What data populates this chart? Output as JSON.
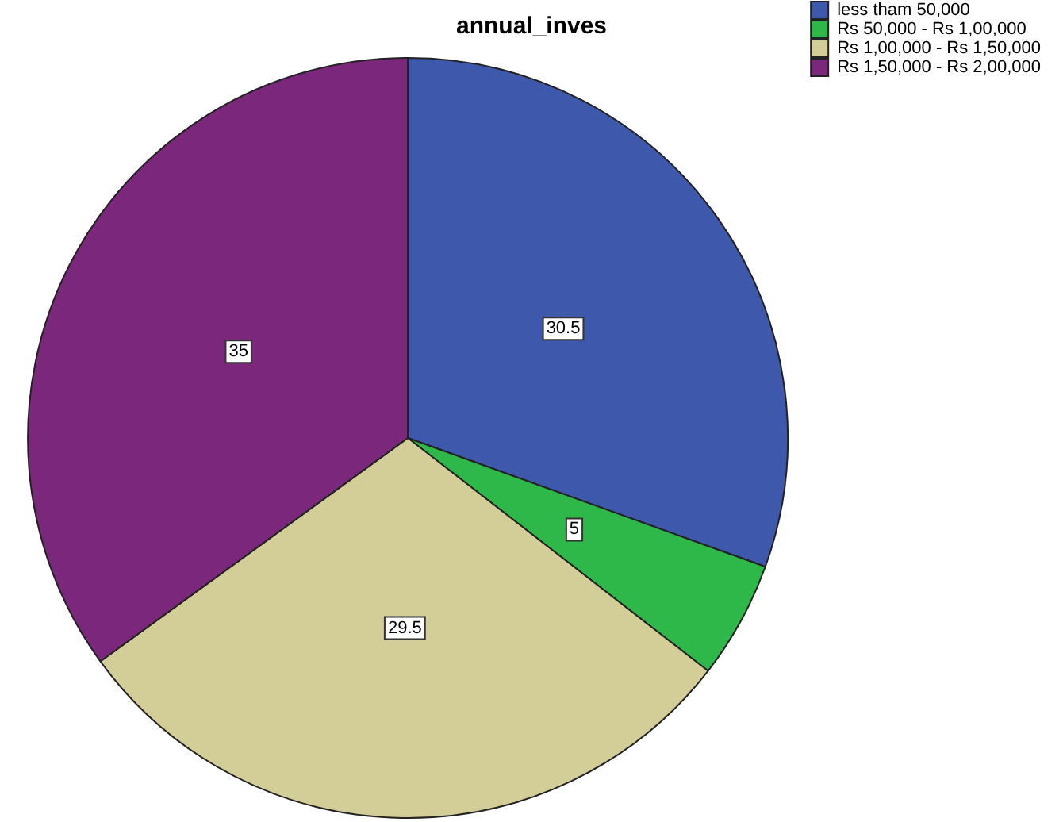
{
  "chart_data": {
    "type": "pie",
    "title": "annual_inves",
    "categories": [
      "less tham 50,000",
      "Rs 50,000 - Rs 1,00,000",
      "Rs 1,00,000 - Rs 1,50,000",
      "Rs 1,50,000 - Rs 2,00,000"
    ],
    "values": [
      30.5,
      5,
      29.5,
      35
    ],
    "colors": [
      "#3e58ac",
      "#2fb84a",
      "#d3ce98",
      "#7b277b"
    ],
    "data_labels": true,
    "legend": "top right"
  }
}
